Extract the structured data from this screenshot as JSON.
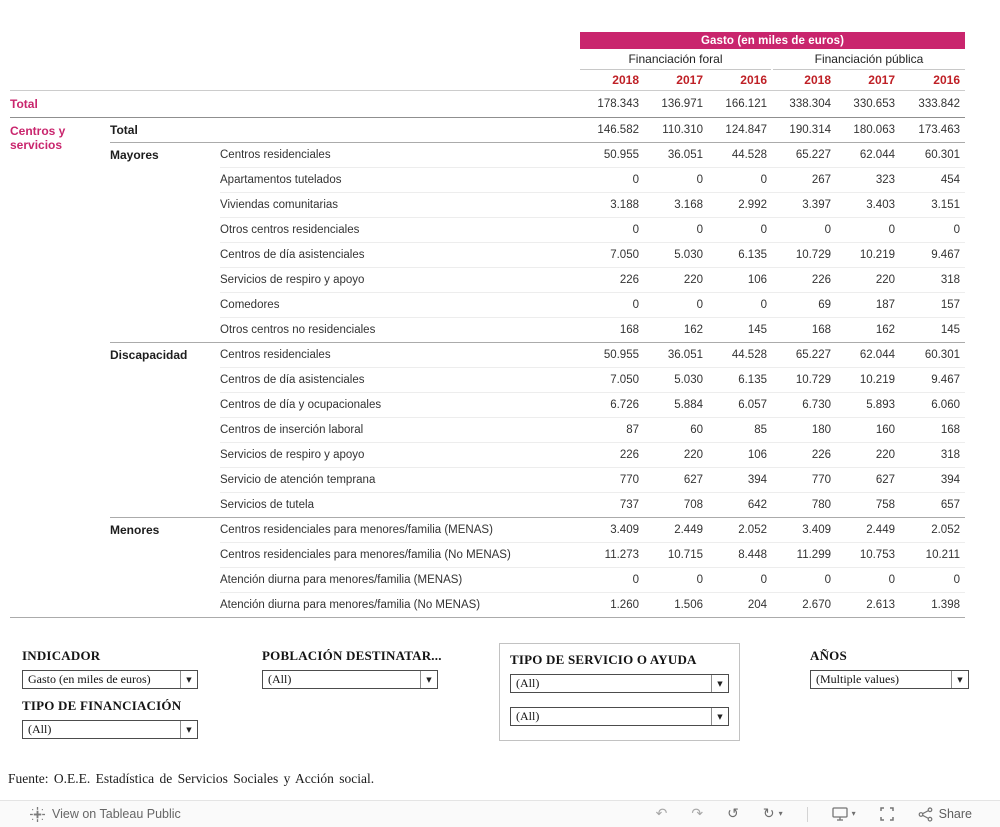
{
  "colors": {
    "band": "#c9256d",
    "accent": "#c9256d",
    "year": "#bf2026"
  },
  "table": {
    "band_title": "Gasto (en miles de euros)",
    "group_headers": [
      "Financiación foral",
      "Financiación pública"
    ],
    "years": [
      "2018",
      "2017",
      "2016"
    ],
    "grand_total": {
      "label": "Total",
      "values": [
        "178.343",
        "136.971",
        "166.121",
        "338.304",
        "330.653",
        "333.842"
      ]
    },
    "left_section_label": "Centros y servicios",
    "sections": [
      {
        "category": "Total",
        "rows": [
          {
            "service": "",
            "values": [
              "146.582",
              "110.310",
              "124.847",
              "190.314",
              "180.063",
              "173.463"
            ]
          }
        ]
      },
      {
        "category": "Mayores",
        "rows": [
          {
            "service": "Centros residenciales",
            "values": [
              "50.955",
              "36.051",
              "44.528",
              "65.227",
              "62.044",
              "60.301"
            ]
          },
          {
            "service": "Apartamentos tutelados",
            "values": [
              "0",
              "0",
              "0",
              "267",
              "323",
              "454"
            ]
          },
          {
            "service": "Viviendas comunitarias",
            "values": [
              "3.188",
              "3.168",
              "2.992",
              "3.397",
              "3.403",
              "3.151"
            ]
          },
          {
            "service": "Otros centros residenciales",
            "values": [
              "0",
              "0",
              "0",
              "0",
              "0",
              "0"
            ]
          },
          {
            "service": "Centros de día asistenciales",
            "values": [
              "7.050",
              "5.030",
              "6.135",
              "10.729",
              "10.219",
              "9.467"
            ]
          },
          {
            "service": "Servicios de respiro y apoyo",
            "values": [
              "226",
              "220",
              "106",
              "226",
              "220",
              "318"
            ]
          },
          {
            "service": "Comedores",
            "values": [
              "0",
              "0",
              "0",
              "69",
              "187",
              "157"
            ]
          },
          {
            "service": "Otros centros no residenciales",
            "values": [
              "168",
              "162",
              "145",
              "168",
              "162",
              "145"
            ]
          }
        ]
      },
      {
        "category": "Discapacidad",
        "rows": [
          {
            "service": "Centros residenciales",
            "values": [
              "50.955",
              "36.051",
              "44.528",
              "65.227",
              "62.044",
              "60.301"
            ]
          },
          {
            "service": "Centros de día asistenciales",
            "values": [
              "7.050",
              "5.030",
              "6.135",
              "10.729",
              "10.219",
              "9.467"
            ]
          },
          {
            "service": "Centros de día y ocupacionales",
            "values": [
              "6.726",
              "5.884",
              "6.057",
              "6.730",
              "5.893",
              "6.060"
            ]
          },
          {
            "service": "Centros de inserción laboral",
            "values": [
              "87",
              "60",
              "85",
              "180",
              "160",
              "168"
            ]
          },
          {
            "service": "Servicios de respiro y apoyo",
            "values": [
              "226",
              "220",
              "106",
              "226",
              "220",
              "318"
            ]
          },
          {
            "service": "Servicio de atención temprana",
            "values": [
              "770",
              "627",
              "394",
              "770",
              "627",
              "394"
            ]
          },
          {
            "service": "Servicios de tutela",
            "values": [
              "737",
              "708",
              "642",
              "780",
              "758",
              "657"
            ]
          }
        ]
      },
      {
        "category": "Menores",
        "rows": [
          {
            "service": "Centros residenciales para menores/familia (MENAS)",
            "values": [
              "3.409",
              "2.449",
              "2.052",
              "3.409",
              "2.449",
              "2.052"
            ]
          },
          {
            "service": "Centros residenciales para menores/familia (No MENAS)",
            "values": [
              "11.273",
              "10.715",
              "8.448",
              "11.299",
              "10.753",
              "10.211"
            ]
          },
          {
            "service": "Atención diurna para menores/familia (MENAS)",
            "values": [
              "0",
              "0",
              "0",
              "0",
              "0",
              "0"
            ]
          },
          {
            "service": "Atención diurna para menores/familia (No MENAS)",
            "values": [
              "1.260",
              "1.506",
              "204",
              "2.670",
              "2.613",
              "1.398"
            ]
          }
        ]
      }
    ]
  },
  "filters": {
    "indicador": {
      "label": "INDICADOR",
      "value": "Gasto (en miles de euros)"
    },
    "poblacion": {
      "label": "POBLACIÓN DESTINATAR...",
      "value": "(All)"
    },
    "tipo_servicio": {
      "label": "TIPO DE SERVICIO O AYUDA",
      "value1": "(All)",
      "value2": "(All)"
    },
    "anos": {
      "label": "AÑOS",
      "value": "(Multiple values)"
    },
    "financiacion": {
      "label": "TIPO DE FINANCIACIÓN",
      "value": "(All)"
    }
  },
  "source_note": "Fuente: O.E.E. Estadística de Servicios Sociales y Acción social.",
  "toolbar": {
    "view_label": "View on Tableau Public",
    "share_label": "Share",
    "icons": {
      "undo": "↶",
      "redo": "↷",
      "reset": "↺",
      "refresh": "↻",
      "caret": "▾"
    }
  }
}
